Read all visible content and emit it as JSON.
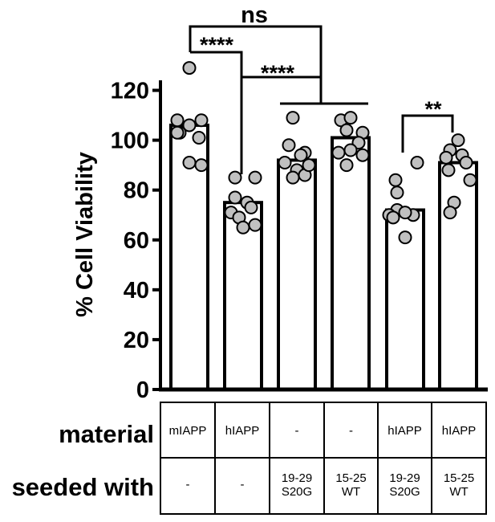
{
  "chart_data": {
    "type": "bar",
    "ylabel": "% Cell Viability",
    "ylim": [
      0,
      130
    ],
    "yticks": [
      0,
      20,
      40,
      60,
      80,
      100,
      120
    ],
    "grid": false,
    "legend": "none",
    "bar_color": "#ffffff",
    "point_color": "#c0c0c0",
    "bars": [
      {
        "mean": 106,
        "points": [
          129,
          108,
          106,
          108,
          103,
          101,
          103,
          90,
          91
        ]
      },
      {
        "mean": 75,
        "points": [
          85,
          85,
          77,
          75,
          71,
          73,
          69,
          66,
          65
        ]
      },
      {
        "mean": 92,
        "points": [
          109,
          95,
          98,
          94,
          91,
          88,
          86,
          85,
          90
        ]
      },
      {
        "mean": 101,
        "points": [
          108,
          109,
          103,
          104,
          99,
          95,
          96,
          94,
          90
        ]
      },
      {
        "mean": 72,
        "points": [
          91,
          84,
          79,
          72,
          70,
          71,
          70,
          69,
          61
        ]
      },
      {
        "mean": 91,
        "points": [
          100,
          96,
          93,
          94,
          91,
          88,
          84,
          75,
          71
        ]
      }
    ],
    "significance": [
      {
        "label": "ns",
        "comparison": "mIAPP vs (-) seeded with 19-29 S20G / 15-25 WT"
      },
      {
        "label": "****",
        "comparison": "mIAPP vs hIAPP"
      },
      {
        "label": "****",
        "comparison": "hIAPP vs (-) seeded with 19-29 S20G / 15-25 WT"
      },
      {
        "label": "**",
        "comparison": "hIAPP seeded 19-29 S20G vs hIAPP seeded 15-25 WT"
      }
    ],
    "table": {
      "row_headers": [
        "material",
        "seeded with"
      ],
      "material": [
        "mIAPP",
        "hIAPP",
        "-",
        "-",
        "hIAPP",
        "hIAPP"
      ],
      "seeded_with": [
        [
          "-"
        ],
        [
          "-"
        ],
        [
          "19-29",
          "S20G"
        ],
        [
          "15-25",
          "WT"
        ],
        [
          "19-29",
          "S20G"
        ],
        [
          "15-25",
          "WT"
        ]
      ]
    }
  }
}
